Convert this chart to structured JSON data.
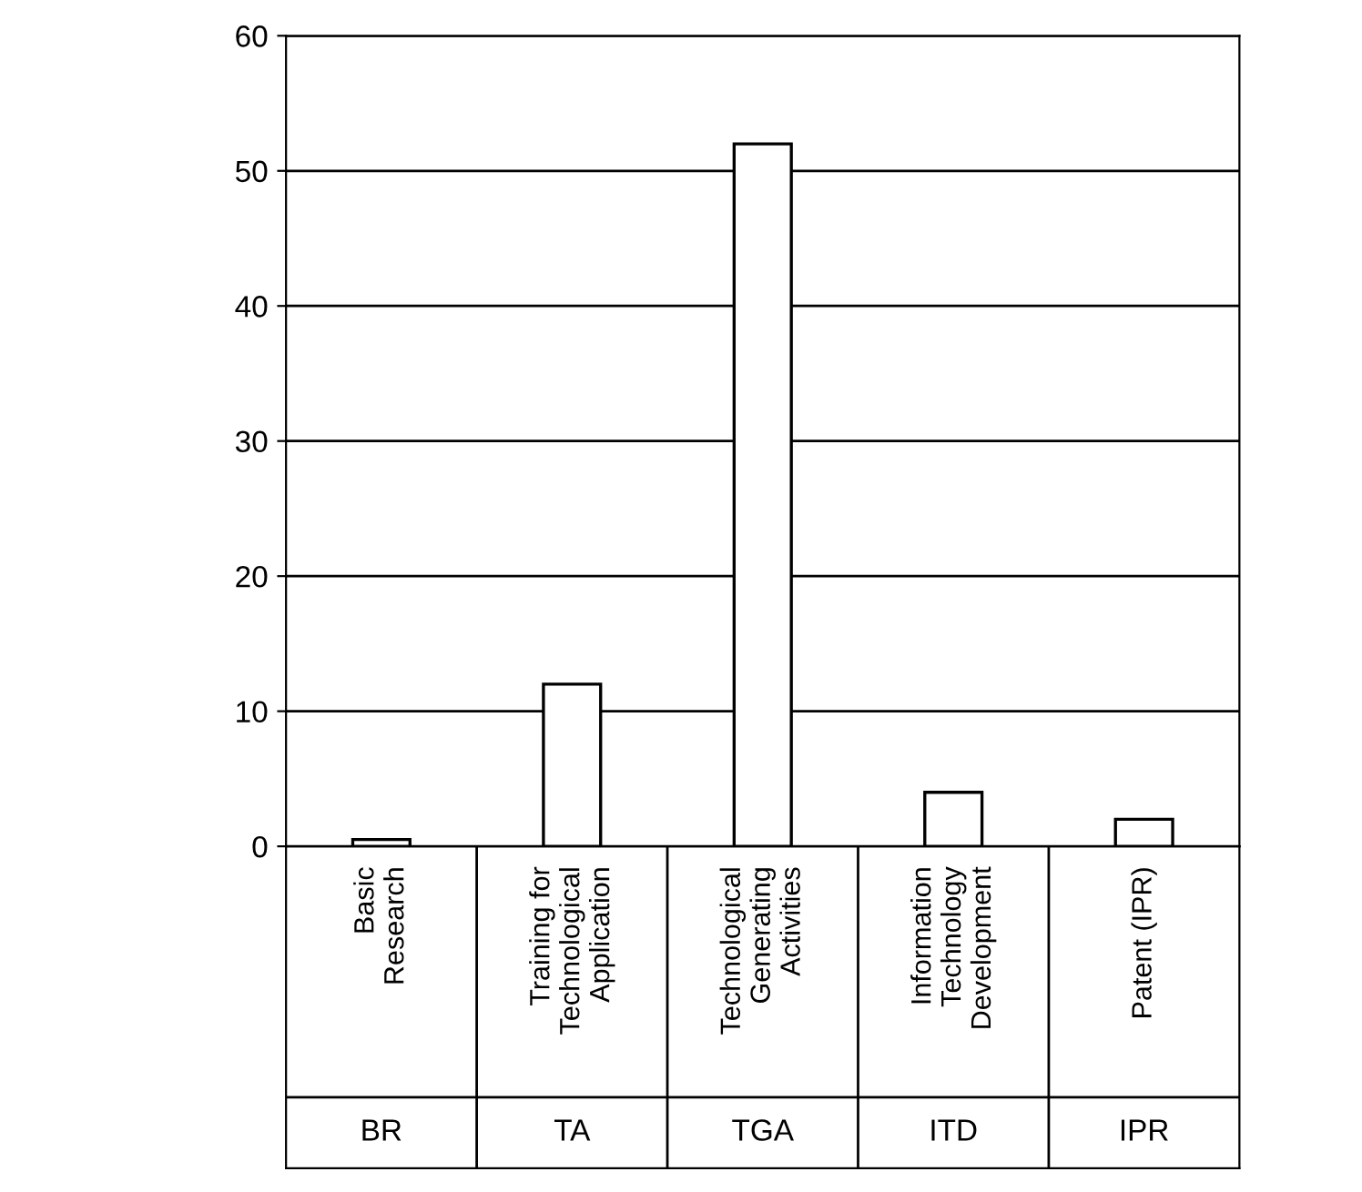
{
  "chart_data": {
    "type": "bar",
    "categories": [
      "Basic\nResearch",
      "Training for\nTechnological\nApplication",
      "Technological\nGenerating\nActivities",
      "Information\nTechnology\nDevelopment",
      "Patent (IPR)"
    ],
    "values": [
      0.5,
      12,
      52,
      4,
      2
    ],
    "color": "#ffffff",
    "annotations": [
      "BR",
      "TA",
      "TGA",
      "ITD",
      "IPR"
    ],
    "ylim": [
      0,
      60
    ],
    "yticks": [
      0,
      10,
      20,
      30,
      40,
      50,
      60
    ],
    "grid": "y"
  }
}
